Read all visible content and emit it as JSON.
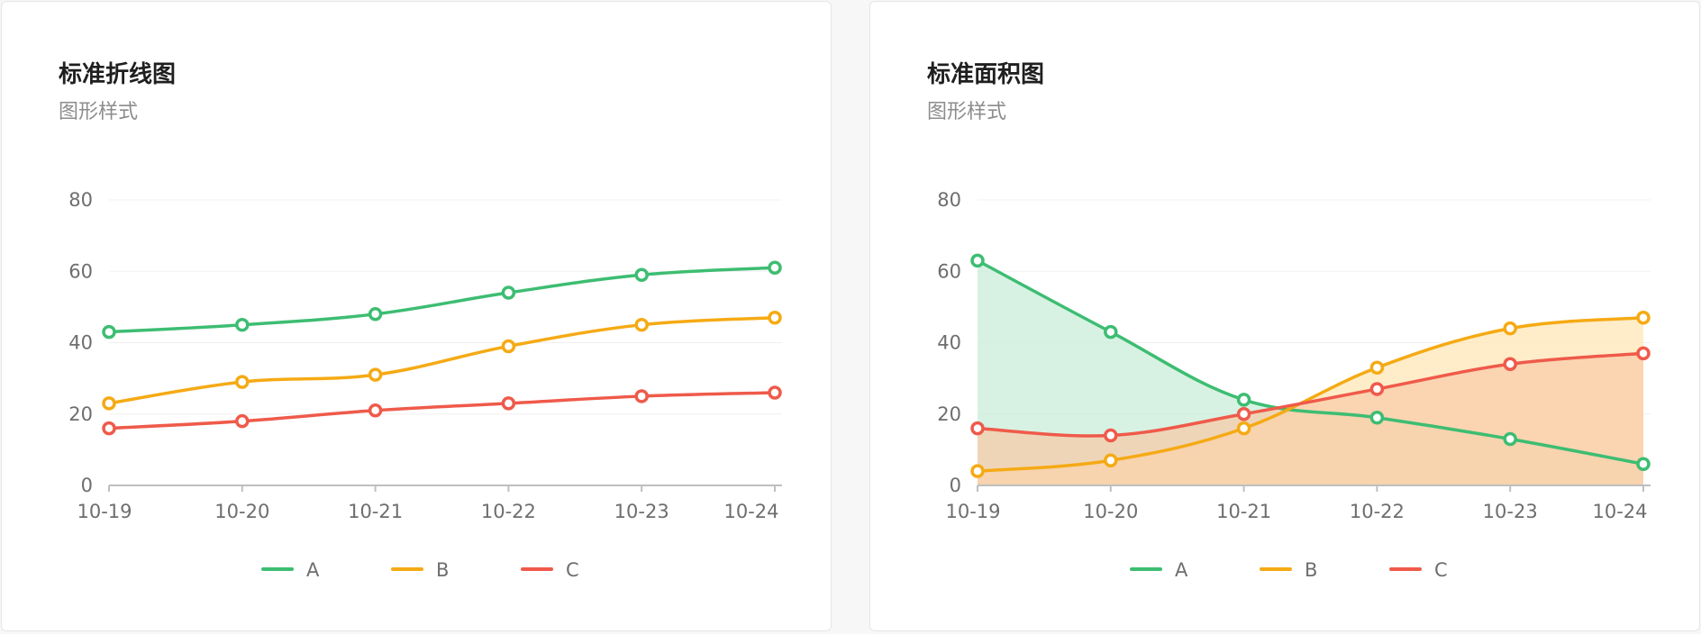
{
  "charts": [
    {
      "title": "标准折线图",
      "subtitle": "图形样式",
      "chart_data": {
        "type": "line",
        "smooth": true,
        "area": false,
        "categories": [
          "10-19",
          "10-20",
          "10-21",
          "10-22",
          "10-23",
          "10-24"
        ],
        "yticks": [
          0,
          20,
          40,
          60,
          80
        ],
        "ylim": [
          0,
          80
        ],
        "grid": true,
        "legend_position": "bottom",
        "series": [
          {
            "name": "A",
            "color": "#3dbd72",
            "values": [
              43,
              45,
              48,
              54,
              59,
              61
            ]
          },
          {
            "name": "B",
            "color": "#f5aa14",
            "values": [
              23,
              29,
              31,
              39,
              45,
              47
            ]
          },
          {
            "name": "C",
            "color": "#ef5a4a",
            "values": [
              16,
              18,
              21,
              23,
              25,
              26
            ]
          }
        ]
      }
    },
    {
      "title": "标准面积图",
      "subtitle": "图形样式",
      "chart_data": {
        "type": "area",
        "smooth": true,
        "area": true,
        "categories": [
          "10-19",
          "10-20",
          "10-21",
          "10-22",
          "10-23",
          "10-24"
        ],
        "yticks": [
          0,
          20,
          40,
          60,
          80
        ],
        "ylim": [
          0,
          80
        ],
        "grid": true,
        "legend_position": "bottom",
        "series": [
          {
            "name": "A",
            "color": "#3dbd72",
            "fill": "#c6ecd5",
            "values": [
              63,
              43,
              24,
              19,
              13,
              6
            ]
          },
          {
            "name": "B",
            "color": "#f5aa14",
            "fill": "#fde6b0",
            "values": [
              4,
              7,
              16,
              33,
              44,
              47
            ]
          },
          {
            "name": "C",
            "color": "#ef5a4a",
            "fill": "#f9c9a7",
            "values": [
              16,
              14,
              20,
              27,
              34,
              37
            ]
          }
        ]
      }
    }
  ]
}
